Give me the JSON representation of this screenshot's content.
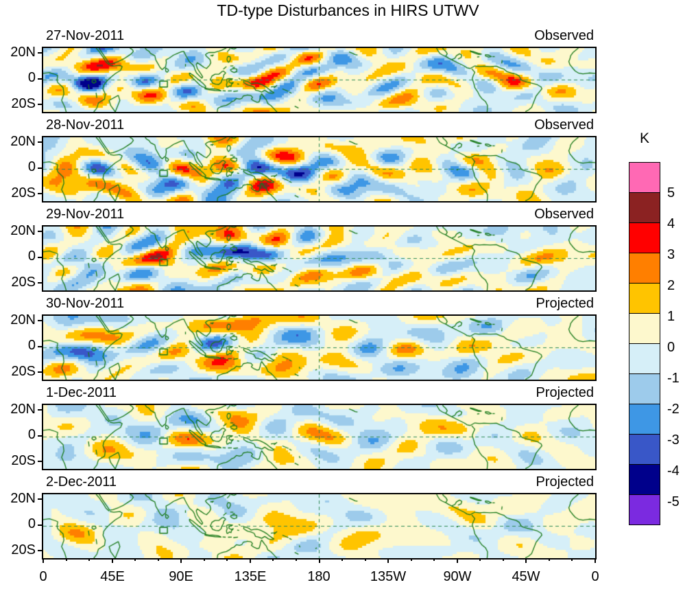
{
  "title": "TD-type Disturbances in HIRS UTWV",
  "panels": [
    {
      "date": "27-Nov-2011",
      "status": "Observed"
    },
    {
      "date": "28-Nov-2011",
      "status": "Observed"
    },
    {
      "date": "29-Nov-2011",
      "status": "Observed"
    },
    {
      "date": "30-Nov-2011",
      "status": "Projected"
    },
    {
      "date": "1-Dec-2011",
      "status": "Projected"
    },
    {
      "date": "2-Dec-2011",
      "status": "Projected"
    }
  ],
  "y_axis": {
    "ticks": [
      "20N",
      "0",
      "20S"
    ]
  },
  "x_axis": {
    "ticks": [
      "0",
      "45E",
      "90E",
      "135E",
      "180",
      "135W",
      "90W",
      "45W",
      "0"
    ]
  },
  "colorbar": {
    "unit": "K",
    "tick_labels": [
      "5",
      "4",
      "3",
      "2",
      "1",
      "0",
      "-1",
      "-2",
      "-3",
      "-4",
      "-5"
    ],
    "colors": [
      "#FF69B4",
      "#8B2222",
      "#FF0000",
      "#FF7F00",
      "#FFC400",
      "#FDF8CD",
      "#D6EFF8",
      "#9DCBEB",
      "#3E97E5",
      "#3957C8",
      "#00008B",
      "#7B2AE0"
    ]
  },
  "map_colors": {
    "coastline": "#1A7A1A",
    "dashed_line": "#2E8B57"
  },
  "chart_data": {
    "type": "heatmap",
    "title": "TD-type Disturbances in HIRS UTWV",
    "unit": "K",
    "panels": [
      {
        "date": "27-Nov-2011",
        "status": "Observed"
      },
      {
        "date": "28-Nov-2011",
        "status": "Observed"
      },
      {
        "date": "29-Nov-2011",
        "status": "Observed"
      },
      {
        "date": "30-Nov-2011",
        "status": "Projected"
      },
      {
        "date": "1-Dec-2011",
        "status": "Projected"
      },
      {
        "date": "2-Dec-2011",
        "status": "Projected"
      }
    ],
    "x_ticks": [
      "0",
      "45E",
      "90E",
      "135E",
      "180",
      "135W",
      "90W",
      "45W",
      "0"
    ],
    "y_ticks": [
      "20N",
      "0",
      "20S"
    ],
    "lon_range_deg_east": [
      0,
      360
    ],
    "lat_range": [
      -25,
      25
    ],
    "contour_levels": [
      -5,
      -4,
      -3,
      -2,
      -1,
      0,
      1,
      2,
      3,
      4,
      5
    ],
    "colormap_high_to_low": [
      "#FF69B4",
      "#8B2222",
      "#FF0000",
      "#FF7F00",
      "#FFC400",
      "#FDF8CD",
      "#D6EFF8",
      "#9DCBEB",
      "#3E97E5",
      "#3957C8",
      "#00008B",
      "#7B2AE0"
    ],
    "legend_position": "right",
    "features": [
      "coastlines",
      "equator dashed line",
      "dateline dashed line",
      "green target box near 78E 3S"
    ]
  }
}
